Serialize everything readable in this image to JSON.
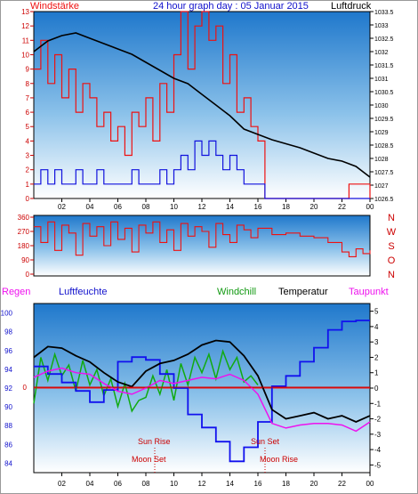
{
  "chart_data": [
    {
      "id": "wind-pressure",
      "type": "line",
      "title": "24 hour graph day : 05 Januar 2015",
      "left_label": "Windstärke",
      "right_label": "Luftdruck",
      "x_ticks": [
        "02",
        "04",
        "06",
        "08",
        "10",
        "12",
        "14",
        "16",
        "18",
        "20",
        "22",
        "00"
      ],
      "y_left_ticks": [
        "0",
        "1",
        "2",
        "3",
        "4",
        "5",
        "6",
        "7",
        "8",
        "9",
        "10",
        "11",
        "12",
        "13"
      ],
      "y_left_range": [
        0,
        13
      ],
      "y_right_ticks": [
        "1026.5",
        "1027",
        "1027.5",
        "1028",
        "1028.5",
        "1029",
        "1029.5",
        "1030",
        "1030.5",
        "1031",
        "1031.5",
        "1032",
        "1032.5",
        "1033",
        "1033.5"
      ],
      "y_right_range": [
        1026.5,
        1033.5
      ],
      "colors": {
        "wind_gust": "#ee1111",
        "wind_avg": "#1111dd",
        "pressure": "#000000",
        "bg_top": "#2a7fd0",
        "bg_bottom": "#ffffff"
      },
      "series": [
        {
          "key": "pressure",
          "axis": "right",
          "x": [
            0,
            1,
            2,
            3,
            4,
            5,
            6,
            7,
            8,
            9,
            10,
            11,
            12,
            13,
            14,
            15,
            16,
            17,
            18,
            19,
            20,
            21,
            22,
            23,
            24
          ],
          "values": [
            1032.0,
            1032.4,
            1032.6,
            1032.7,
            1032.5,
            1032.3,
            1032.1,
            1031.9,
            1031.6,
            1031.3,
            1031.0,
            1030.8,
            1030.4,
            1030.0,
            1029.6,
            1029.1,
            1028.9,
            1028.7,
            1028.55,
            1028.4,
            1028.2,
            1028.0,
            1027.9,
            1027.7,
            1027.3
          ]
        },
        {
          "key": "wind_gust",
          "axis": "left",
          "x": [
            0,
            0.5,
            1,
            1.5,
            2,
            2.5,
            3,
            3.5,
            4,
            4.5,
            5,
            5.5,
            6,
            6.5,
            7,
            7.5,
            8,
            8.5,
            9,
            9.5,
            10,
            10.5,
            11,
            11.5,
            12,
            12.5,
            13,
            13.5,
            14,
            14.5,
            15,
            15.5,
            16,
            16.5,
            17,
            18,
            19,
            20,
            21,
            22,
            22.5,
            23,
            23.5,
            24
          ],
          "values": [
            9,
            11,
            8,
            10,
            7,
            9,
            6,
            8,
            7,
            5,
            6,
            4,
            5,
            3,
            6,
            5,
            7,
            4,
            8,
            6,
            10,
            13,
            9,
            12,
            13,
            11,
            12,
            8,
            10,
            6,
            7,
            5,
            4,
            0,
            0,
            0,
            0,
            0,
            0,
            0,
            1,
            1,
            1,
            0
          ]
        },
        {
          "key": "wind_avg",
          "axis": "left",
          "x": [
            0,
            0.5,
            1,
            1.5,
            2,
            2.5,
            3,
            3.5,
            4,
            4.5,
            5,
            5.5,
            6,
            6.5,
            7,
            7.5,
            8,
            8.5,
            9,
            9.5,
            10,
            10.5,
            11,
            11.5,
            12,
            12.5,
            13,
            13.5,
            14,
            14.5,
            15,
            15.5,
            16,
            16.5,
            17,
            18,
            19,
            20,
            21,
            22,
            22.5,
            23,
            23.5,
            24
          ],
          "values": [
            1,
            2,
            1,
            2,
            1,
            1,
            2,
            1,
            1,
            2,
            1,
            1,
            1,
            1,
            2,
            1,
            1,
            1,
            2,
            1,
            2,
            3,
            2,
            4,
            3,
            4,
            3,
            2,
            3,
            2,
            1,
            1,
            1,
            0,
            0,
            0,
            0,
            0,
            0,
            0,
            0,
            0,
            0,
            0
          ]
        }
      ]
    },
    {
      "id": "wind-direction",
      "type": "line",
      "y_ticks": [
        "0",
        "90",
        "180",
        "270",
        "360"
      ],
      "y_range": [
        0,
        360
      ],
      "compass_labels": [
        "N",
        "W",
        "S",
        "O",
        "N"
      ],
      "colors": {
        "direction": "#ee1111"
      },
      "series": [
        {
          "key": "direction",
          "x": [
            0,
            0.5,
            1,
            1.5,
            2,
            2.5,
            3,
            3.5,
            4,
            4.5,
            5,
            5.5,
            6,
            6.5,
            7,
            7.5,
            8,
            8.5,
            9,
            9.5,
            10,
            10.5,
            11,
            11.5,
            12,
            12.5,
            13,
            13.5,
            14,
            14.5,
            15,
            15.5,
            16,
            17,
            18,
            19,
            20,
            21,
            22,
            22.5,
            23,
            23.5,
            24
          ],
          "values": [
            300,
            200,
            330,
            150,
            310,
            260,
            120,
            320,
            240,
            300,
            180,
            330,
            220,
            290,
            140,
            310,
            260,
            330,
            200,
            280,
            150,
            320,
            240,
            300,
            270,
            170,
            320,
            250,
            200,
            310,
            280,
            230,
            290,
            250,
            260,
            240,
            230,
            200,
            140,
            110,
            160,
            130,
            150
          ]
        }
      ]
    },
    {
      "id": "temp-humidity",
      "type": "line",
      "legend": {
        "rain": "Regen",
        "humidity": "Luftfeuchte",
        "windchill": "Windchill",
        "temperature": "Temperatur",
        "dewpoint": "Taupunkt"
      },
      "x_ticks": [
        "02",
        "04",
        "06",
        "08",
        "10",
        "12",
        "14",
        "16",
        "18",
        "20",
        "22",
        "00"
      ],
      "y_left_ticks": [
        "84",
        "86",
        "88",
        "90",
        "92",
        "94",
        "96",
        "98",
        "100"
      ],
      "y_left_range": [
        83,
        101
      ],
      "y_right_ticks": [
        "-5",
        "-4",
        "-3",
        "-2",
        "-1",
        "0",
        "1",
        "2",
        "3",
        "4",
        "5"
      ],
      "y_right_range": [
        -5.5,
        5.5
      ],
      "zero_label": "0",
      "annotations": {
        "sun_rise": "Sun Rise",
        "sun_set": "Sun Set",
        "moon_set": "Moon Set",
        "moon_rise": "Moon Rise"
      },
      "colors": {
        "humidity": "#1111ee",
        "windchill": "#11aa11",
        "temperature": "#000000",
        "dewpoint": "#ee11ee",
        "rain": "#ee1111",
        "zero": "#cc0000"
      },
      "series": [
        {
          "key": "temperature",
          "axis": "right",
          "x": [
            0,
            1,
            2,
            3,
            4,
            5,
            6,
            7,
            8,
            9,
            10,
            11,
            12,
            13,
            14,
            15,
            16,
            17,
            18,
            19,
            20,
            21,
            22,
            23,
            24
          ],
          "values": [
            2.0,
            2.7,
            2.6,
            2.1,
            1.7,
            1.0,
            0.4,
            0.1,
            1.1,
            1.6,
            1.8,
            2.2,
            2.8,
            3.1,
            3.0,
            2.1,
            0.8,
            -1.4,
            -2.0,
            -1.8,
            -1.6,
            -2.0,
            -1.8,
            -2.2,
            -1.8
          ]
        },
        {
          "key": "windchill",
          "axis": "right",
          "x": [
            0,
            0.5,
            1,
            1.5,
            2,
            2.5,
            3,
            3.5,
            4,
            4.5,
            5,
            5.5,
            6,
            6.5,
            7,
            7.5,
            8,
            8.5,
            9,
            9.5,
            10,
            10.5,
            11,
            11.5,
            12,
            12.5,
            13,
            13.5,
            14,
            14.5,
            15,
            15.5,
            16
          ],
          "values": [
            -1.0,
            2.0,
            0.5,
            2.2,
            0.8,
            1.5,
            -0.2,
            1.8,
            0.2,
            1.2,
            -0.5,
            0.6,
            -1.2,
            0.3,
            -1.5,
            -0.8,
            -0.6,
            0.8,
            -0.4,
            1.2,
            -0.8,
            1.6,
            0.2,
            2.0,
            1.0,
            2.2,
            0.6,
            2.4,
            1.2,
            2.0,
            0.4,
            0.8,
            0.2
          ]
        },
        {
          "key": "dewpoint",
          "axis": "right",
          "x": [
            0,
            1,
            2,
            3,
            4,
            5,
            6,
            7,
            8,
            9,
            10,
            11,
            12,
            13,
            14,
            15,
            16,
            17,
            18,
            19,
            20,
            21,
            22,
            23,
            24
          ],
          "values": [
            0.7,
            1.1,
            1.3,
            1.0,
            0.9,
            0.3,
            -0.2,
            -0.4,
            0.0,
            0.5,
            0.3,
            0.5,
            0.7,
            0.6,
            0.9,
            0.5,
            -0.4,
            -2.3,
            -2.6,
            -2.4,
            -2.3,
            -2.3,
            -2.4,
            -2.8,
            -2.2
          ]
        },
        {
          "key": "humidity",
          "axis": "left",
          "x": [
            0,
            1,
            2,
            3,
            4,
            5,
            6,
            7,
            8,
            9,
            10,
            11,
            12,
            13,
            14,
            15,
            16,
            17,
            18,
            19,
            20,
            21,
            22,
            23,
            24
          ],
          "values": [
            94.3,
            93.5,
            92.6,
            91.7,
            90.5,
            91.8,
            94.8,
            95.3,
            95.0,
            93.5,
            92.0,
            89.2,
            87.8,
            86.3,
            84.2,
            85.7,
            88.4,
            92.2,
            93.3,
            94.8,
            96.3,
            98.2,
            99.1,
            99.2,
            99.2
          ]
        },
        {
          "key": "rain",
          "axis": "right",
          "x": [
            0,
            24
          ],
          "values": [
            0,
            0
          ]
        }
      ]
    }
  ]
}
